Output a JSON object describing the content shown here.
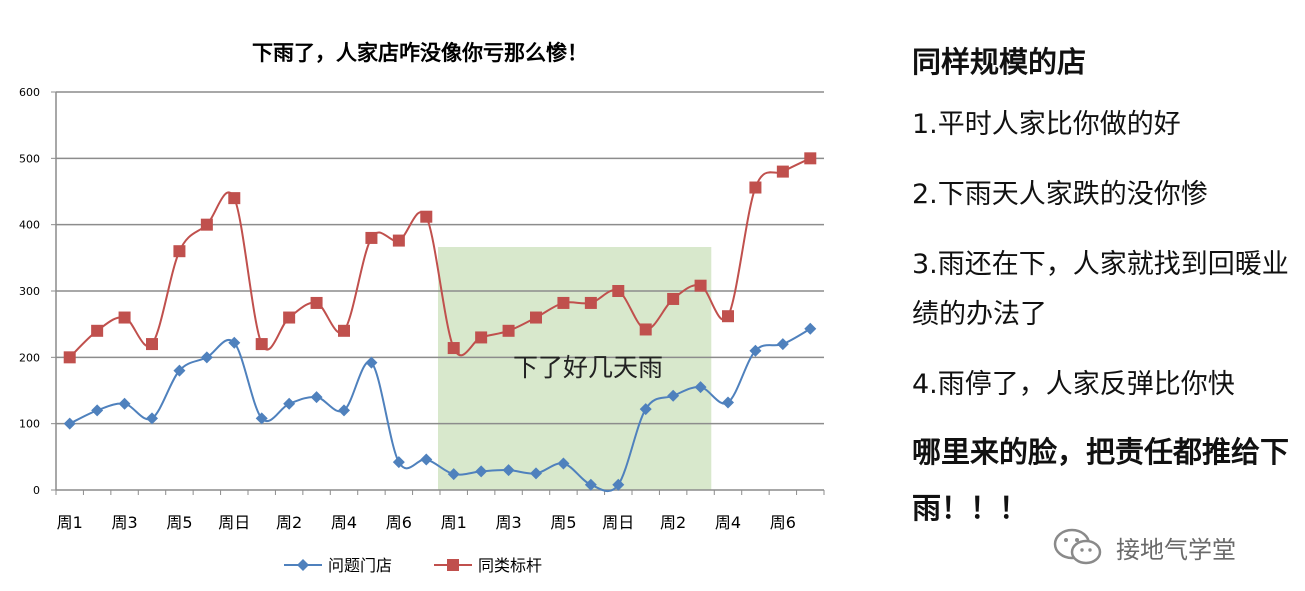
{
  "chart_data": {
    "type": "line",
    "title": "下雨了，人家店咋没像你亏那么惨！",
    "categories": [
      "周1",
      "周2",
      "周3",
      "周4",
      "周5",
      "周6",
      "周日",
      "周1",
      "周2",
      "周3",
      "周4",
      "周5",
      "周6",
      "周日",
      "周1",
      "周2",
      "周3",
      "周4",
      "周5",
      "周6",
      "周日",
      "周1",
      "周2",
      "周3",
      "周4",
      "周5",
      "周6",
      "周日"
    ],
    "xtick_labels": [
      "周1",
      "周3",
      "周5",
      "周日",
      "周2",
      "周4",
      "周6",
      "周1",
      "周3",
      "周5",
      "周日",
      "周2",
      "周4",
      "周6"
    ],
    "series": [
      {
        "name": "问题门店",
        "color": "#4f81bd",
        "marker": "diamond",
        "values": [
          100,
          120,
          130,
          108,
          180,
          200,
          222,
          108,
          130,
          140,
          120,
          192,
          42,
          46,
          24,
          28,
          30,
          25,
          40,
          8,
          8,
          122,
          142,
          155,
          132,
          210,
          220,
          243
        ]
      },
      {
        "name": "同类标杆",
        "color": "#c0504d",
        "marker": "square",
        "values": [
          200,
          240,
          260,
          220,
          360,
          400,
          440,
          220,
          260,
          282,
          240,
          380,
          376,
          412,
          214,
          230,
          240,
          260,
          282,
          282,
          300,
          242,
          288,
          308,
          262,
          456,
          480,
          500
        ]
      }
    ],
    "ylim": [
      0,
      600
    ],
    "yticks": [
      0,
      100,
      200,
      300,
      400,
      500,
      600
    ],
    "grid": true,
    "legend": "bottom",
    "annotation": "下了好几天雨",
    "highlight_region_color": "#d8e8cc"
  },
  "side": {
    "heading": "同样规模的店",
    "points": [
      "1.平时人家比你做的好",
      "2.下雨天人家跌的没你惨",
      "3.雨还在下，人家就找到回暖业绩的办法了",
      "4.雨停了，人家反弹比你快"
    ],
    "conclusion": "哪里来的脸，把责任都推给下雨！！！"
  },
  "watermark": {
    "text": "接地气学堂",
    "icon": "wechat-icon"
  }
}
